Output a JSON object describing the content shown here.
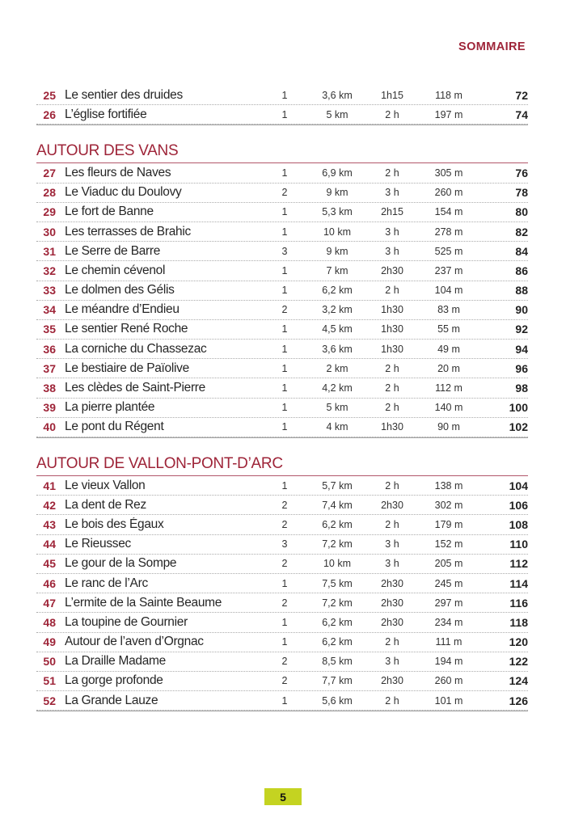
{
  "header": {
    "title": "SOMMAIRE"
  },
  "footer": {
    "page_number": "5"
  },
  "colors": {
    "accent_red": "#9e2438",
    "footer_green": "#c4d321",
    "text_dark": "#262626"
  },
  "sections": [
    {
      "title": "",
      "rows": [
        {
          "num": "25",
          "title": "Le sentier des druides",
          "difficulty": "1",
          "distance": "3,6 km",
          "time": "1h15",
          "elevation": "118 m",
          "page": "72"
        },
        {
          "num": "26",
          "title": "L’église fortifiée",
          "difficulty": "1",
          "distance": "5 km",
          "time": "2 h",
          "elevation": "197 m",
          "page": "74"
        }
      ]
    },
    {
      "title": "AUTOUR DES VANS",
      "rows": [
        {
          "num": "27",
          "title": "Les fleurs de Naves",
          "difficulty": "1",
          "distance": "6,9 km",
          "time": "2 h",
          "elevation": "305 m",
          "page": "76"
        },
        {
          "num": "28",
          "title": "Le Viaduc du Doulovy",
          "difficulty": "2",
          "distance": "9 km",
          "time": "3 h",
          "elevation": "260 m",
          "page": "78"
        },
        {
          "num": "29",
          "title": "Le fort de Banne",
          "difficulty": "1",
          "distance": "5,3 km",
          "time": "2h15",
          "elevation": "154 m",
          "page": "80"
        },
        {
          "num": "30",
          "title": "Les terrasses de Brahic",
          "difficulty": "1",
          "distance": "10 km",
          "time": "3 h",
          "elevation": "278 m",
          "page": "82"
        },
        {
          "num": "31",
          "title": "Le Serre de Barre",
          "difficulty": "3",
          "distance": "9 km",
          "time": "3 h",
          "elevation": "525 m",
          "page": "84"
        },
        {
          "num": "32",
          "title": "Le chemin cévenol",
          "difficulty": "1",
          "distance": "7 km",
          "time": "2h30",
          "elevation": "237 m",
          "page": "86"
        },
        {
          "num": "33",
          "title": "Le dolmen des Gélis",
          "difficulty": "1",
          "distance": "6,2 km",
          "time": "2 h",
          "elevation": "104 m",
          "page": "88"
        },
        {
          "num": "34",
          "title": "Le méandre d’Endieu",
          "difficulty": "2",
          "distance": "3,2 km",
          "time": "1h30",
          "elevation": "83 m",
          "page": "90"
        },
        {
          "num": "35",
          "title": "Le sentier René Roche",
          "difficulty": "1",
          "distance": "4,5 km",
          "time": "1h30",
          "elevation": "55 m",
          "page": "92"
        },
        {
          "num": "36",
          "title": "La corniche du Chassezac",
          "difficulty": "1",
          "distance": "3,6 km",
          "time": "1h30",
          "elevation": "49 m",
          "page": "94"
        },
        {
          "num": "37",
          "title": "Le bestiaire de Païolive",
          "difficulty": "1",
          "distance": "2 km",
          "time": "2 h",
          "elevation": "20 m",
          "page": "96"
        },
        {
          "num": "38",
          "title": "Les clèdes de Saint-Pierre",
          "difficulty": "1",
          "distance": "4,2 km",
          "time": "2 h",
          "elevation": "112 m",
          "page": "98"
        },
        {
          "num": "39",
          "title": "La pierre plantée",
          "difficulty": "1",
          "distance": "5 km",
          "time": "2 h",
          "elevation": "140 m",
          "page": "100"
        },
        {
          "num": "40",
          "title": "Le pont du Régent",
          "difficulty": "1",
          "distance": "4 km",
          "time": "1h30",
          "elevation": "90 m",
          "page": "102"
        }
      ]
    },
    {
      "title": "AUTOUR DE VALLON-PONT-D’ARC",
      "rows": [
        {
          "num": "41",
          "title": "Le vieux Vallon",
          "difficulty": "1",
          "distance": "5,7 km",
          "time": "2 h",
          "elevation": "138 m",
          "page": "104"
        },
        {
          "num": "42",
          "title": "La dent de Rez",
          "difficulty": "2",
          "distance": "7,4 km",
          "time": "2h30",
          "elevation": "302 m",
          "page": "106"
        },
        {
          "num": "43",
          "title": "Le bois des Égaux",
          "difficulty": "2",
          "distance": "6,2 km",
          "time": "2 h",
          "elevation": "179 m",
          "page": "108"
        },
        {
          "num": "44",
          "title": "Le Rieussec",
          "difficulty": "3",
          "distance": "7,2 km",
          "time": "3 h",
          "elevation": "152 m",
          "page": "110"
        },
        {
          "num": "45",
          "title": "Le gour de la Sompe",
          "difficulty": "2",
          "distance": "10 km",
          "time": "3 h",
          "elevation": "205 m",
          "page": "112"
        },
        {
          "num": "46",
          "title": "Le ranc de l’Arc",
          "difficulty": "1",
          "distance": "7,5 km",
          "time": "2h30",
          "elevation": "245 m",
          "page": "114"
        },
        {
          "num": "47",
          "title": "L’ermite de la Sainte Beaume",
          "difficulty": "2",
          "distance": "7,2 km",
          "time": "2h30",
          "elevation": "297 m",
          "page": "116"
        },
        {
          "num": "48",
          "title": "La toupine de Gournier",
          "difficulty": "1",
          "distance": "6,2 km",
          "time": "2h30",
          "elevation": "234 m",
          "page": "118"
        },
        {
          "num": "49",
          "title": "Autour de l’aven d’Orgnac",
          "difficulty": "1",
          "distance": "6,2 km",
          "time": "2 h",
          "elevation": "111 m",
          "page": "120"
        },
        {
          "num": "50",
          "title": "La Draille Madame",
          "difficulty": "2",
          "distance": "8,5 km",
          "time": "3 h",
          "elevation": "194 m",
          "page": "122"
        },
        {
          "num": "51",
          "title": "La gorge profonde",
          "difficulty": "2",
          "distance": "7,7 km",
          "time": "2h30",
          "elevation": "260 m",
          "page": "124"
        },
        {
          "num": "52",
          "title": "La Grande Lauze",
          "difficulty": "1",
          "distance": "5,6 km",
          "time": "2 h",
          "elevation": "101 m",
          "page": "126"
        }
      ]
    }
  ]
}
